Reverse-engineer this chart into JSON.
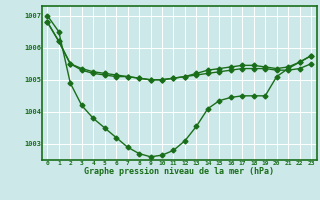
{
  "xlabel": "Graphe pression niveau de la mer (hPa)",
  "background_color": "#cce8e8",
  "plot_bg_color": "#cce8e8",
  "line_color": "#1a6e1a",
  "grid_color": "#ffffff",
  "xlim": [
    -0.5,
    23.5
  ],
  "ylim": [
    1002.5,
    1007.3
  ],
  "yticks": [
    1003,
    1004,
    1005,
    1006,
    1007
  ],
  "xticks": [
    0,
    1,
    2,
    3,
    4,
    5,
    6,
    7,
    8,
    9,
    10,
    11,
    12,
    13,
    14,
    15,
    16,
    17,
    18,
    19,
    20,
    21,
    22,
    23
  ],
  "series1_x": [
    0,
    1,
    2,
    3,
    4,
    5,
    6,
    7,
    8,
    9,
    10,
    11,
    12,
    13,
    14,
    15,
    16,
    17,
    18,
    19,
    20,
    21,
    22,
    23
  ],
  "series1_y": [
    1006.8,
    1006.2,
    1005.5,
    1005.3,
    1005.2,
    1005.15,
    1005.1,
    1005.1,
    1005.05,
    1005.0,
    1005.0,
    1005.05,
    1005.1,
    1005.15,
    1005.2,
    1005.25,
    1005.3,
    1005.35,
    1005.35,
    1005.35,
    1005.3,
    1005.3,
    1005.35,
    1005.5
  ],
  "series2_x": [
    0,
    1,
    2,
    3,
    4,
    5,
    6,
    7,
    8,
    9,
    10,
    11,
    12,
    13,
    14,
    15,
    16,
    17,
    18,
    19,
    20,
    21,
    22,
    23
  ],
  "series2_y": [
    1006.8,
    1006.2,
    1005.5,
    1005.35,
    1005.25,
    1005.2,
    1005.15,
    1005.1,
    1005.05,
    1005.0,
    1005.0,
    1005.05,
    1005.1,
    1005.2,
    1005.3,
    1005.35,
    1005.4,
    1005.45,
    1005.45,
    1005.4,
    1005.35,
    1005.4,
    1005.55,
    1005.75
  ],
  "series3_x": [
    0,
    1,
    2,
    3,
    4,
    5,
    6,
    7,
    8,
    9,
    10,
    11,
    12,
    13,
    14,
    15,
    16,
    17,
    18,
    19,
    20,
    21,
    22,
    23
  ],
  "series3_y": [
    1007.0,
    1006.5,
    1004.9,
    1004.2,
    1003.8,
    1003.5,
    1003.2,
    1002.9,
    1002.7,
    1002.6,
    1002.65,
    1002.8,
    1003.1,
    1003.55,
    1004.1,
    1004.35,
    1004.45,
    1004.5,
    1004.5,
    1004.5,
    1005.1,
    1005.35,
    1005.55,
    1005.75
  ],
  "marker": "D",
  "markersize": 2.5,
  "linewidth": 1.0
}
